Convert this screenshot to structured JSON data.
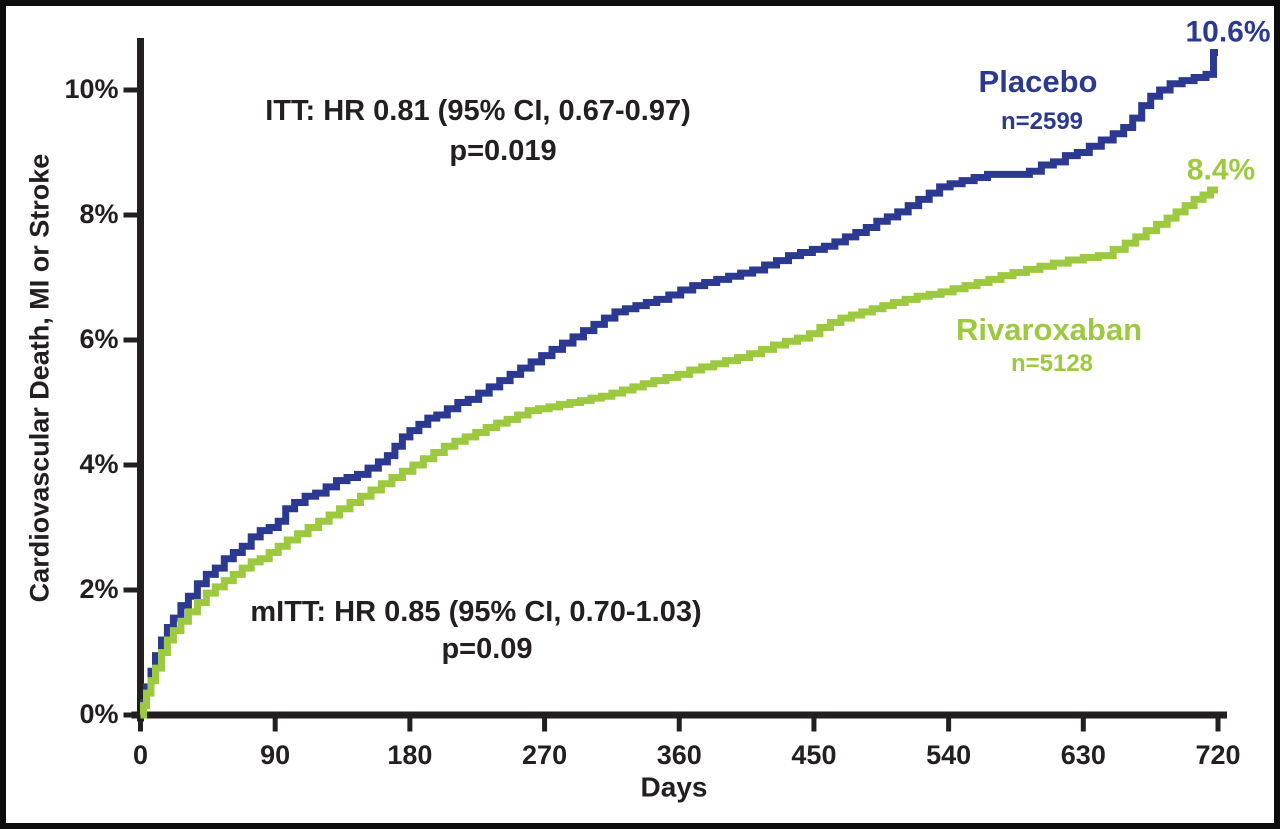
{
  "figure": {
    "y_axis_title": "Cardiovascular Death, MI or Stroke",
    "x_axis_title": "Days",
    "annotations": {
      "itt_line1": "ITT: HR 0.81 (95% CI, 0.67-0.97)",
      "itt_line2": "p=0.019",
      "mitt_line1": "mITT: HR 0.85 (95% CI, 0.70-1.03)",
      "mitt_line2": "p=0.09"
    },
    "series_labels": {
      "placebo_name": "Placebo",
      "placebo_n": "n=2599",
      "rivaroxaban_name": "Rivaroxaban",
      "rivaroxaban_n": "n=5128"
    },
    "endpoint_labels": {
      "placebo": "10.6%",
      "rivaroxaban": "8.4%"
    },
    "colors": {
      "placebo": "#2b3a90",
      "rivaroxaban": "#9cc93f",
      "axis": "#231f20"
    }
  },
  "chart_data": {
    "type": "line",
    "subtype": "kaplan-meier-step",
    "title": "",
    "xlabel": "Days",
    "ylabel": "Cardiovascular Death, MI or Stroke",
    "xlim": [
      0,
      720
    ],
    "ylim": [
      0,
      10.6
    ],
    "grid": false,
    "legend_position": "inline-labels",
    "x_ticks": [
      0,
      90,
      180,
      270,
      360,
      450,
      540,
      630,
      720
    ],
    "y_tick_values": [
      0,
      2,
      4,
      6,
      8,
      10
    ],
    "y_tick_labels": [
      "0%",
      "2%",
      "4%",
      "6%",
      "8%",
      "10%"
    ],
    "series": [
      {
        "name": "Placebo",
        "n_label": "n=2599",
        "color": "#2b3a90",
        "final_value_label": "10.6%",
        "points": [
          [
            0,
            0
          ],
          [
            2,
            0.2
          ],
          [
            4,
            0.45
          ],
          [
            7,
            0.7
          ],
          [
            10,
            0.95
          ],
          [
            14,
            1.2
          ],
          [
            18,
            1.4
          ],
          [
            22,
            1.55
          ],
          [
            27,
            1.75
          ],
          [
            32,
            1.9
          ],
          [
            38,
            2.1
          ],
          [
            44,
            2.25
          ],
          [
            50,
            2.35
          ],
          [
            56,
            2.5
          ],
          [
            62,
            2.6
          ],
          [
            68,
            2.7
          ],
          [
            74,
            2.85
          ],
          [
            80,
            2.95
          ],
          [
            86,
            3.0
          ],
          [
            92,
            3.1
          ],
          [
            97,
            3.3
          ],
          [
            103,
            3.4
          ],
          [
            110,
            3.5
          ],
          [
            117,
            3.55
          ],
          [
            124,
            3.65
          ],
          [
            131,
            3.75
          ],
          [
            138,
            3.8
          ],
          [
            145,
            3.85
          ],
          [
            152,
            3.95
          ],
          [
            159,
            4.05
          ],
          [
            165,
            4.15
          ],
          [
            170,
            4.3
          ],
          [
            175,
            4.45
          ],
          [
            180,
            4.55
          ],
          [
            186,
            4.65
          ],
          [
            192,
            4.75
          ],
          [
            198,
            4.8
          ],
          [
            205,
            4.9
          ],
          [
            212,
            5.0
          ],
          [
            219,
            5.05
          ],
          [
            226,
            5.15
          ],
          [
            233,
            5.25
          ],
          [
            240,
            5.35
          ],
          [
            247,
            5.45
          ],
          [
            254,
            5.55
          ],
          [
            261,
            5.65
          ],
          [
            268,
            5.75
          ],
          [
            275,
            5.85
          ],
          [
            282,
            5.95
          ],
          [
            289,
            6.05
          ],
          [
            296,
            6.15
          ],
          [
            303,
            6.25
          ],
          [
            310,
            6.35
          ],
          [
            317,
            6.45
          ],
          [
            324,
            6.5
          ],
          [
            331,
            6.55
          ],
          [
            338,
            6.6
          ],
          [
            345,
            6.65
          ],
          [
            353,
            6.72
          ],
          [
            361,
            6.8
          ],
          [
            369,
            6.87
          ],
          [
            377,
            6.92
          ],
          [
            385,
            6.97
          ],
          [
            393,
            7.02
          ],
          [
            401,
            7.07
          ],
          [
            409,
            7.12
          ],
          [
            417,
            7.2
          ],
          [
            425,
            7.27
          ],
          [
            433,
            7.35
          ],
          [
            441,
            7.4
          ],
          [
            449,
            7.45
          ],
          [
            457,
            7.5
          ],
          [
            464,
            7.57
          ],
          [
            471,
            7.65
          ],
          [
            478,
            7.72
          ],
          [
            485,
            7.8
          ],
          [
            492,
            7.9
          ],
          [
            499,
            7.97
          ],
          [
            506,
            8.05
          ],
          [
            513,
            8.15
          ],
          [
            520,
            8.25
          ],
          [
            527,
            8.35
          ],
          [
            534,
            8.45
          ],
          [
            541,
            8.5
          ],
          [
            549,
            8.55
          ],
          [
            557,
            8.6
          ],
          [
            566,
            8.65
          ],
          [
            580,
            8.65
          ],
          [
            594,
            8.7
          ],
          [
            602,
            8.8
          ],
          [
            610,
            8.85
          ],
          [
            618,
            8.95
          ],
          [
            626,
            9.0
          ],
          [
            634,
            9.1
          ],
          [
            642,
            9.2
          ],
          [
            650,
            9.3
          ],
          [
            657,
            9.4
          ],
          [
            663,
            9.55
          ],
          [
            669,
            9.75
          ],
          [
            675,
            9.9
          ],
          [
            681,
            10.0
          ],
          [
            688,
            10.1
          ],
          [
            696,
            10.15
          ],
          [
            704,
            10.2
          ],
          [
            712,
            10.25
          ],
          [
            717,
            10.6
          ],
          [
            720,
            10.6
          ]
        ]
      },
      {
        "name": "Rivaroxaban",
        "n_label": "n=5128",
        "color": "#9cc93f",
        "final_value_label": "8.4%",
        "points": [
          [
            0,
            0
          ],
          [
            2,
            0.15
          ],
          [
            4,
            0.35
          ],
          [
            7,
            0.55
          ],
          [
            10,
            0.75
          ],
          [
            14,
            1.0
          ],
          [
            18,
            1.2
          ],
          [
            22,
            1.35
          ],
          [
            27,
            1.5
          ],
          [
            32,
            1.65
          ],
          [
            38,
            1.8
          ],
          [
            44,
            1.95
          ],
          [
            50,
            2.05
          ],
          [
            56,
            2.15
          ],
          [
            62,
            2.25
          ],
          [
            68,
            2.35
          ],
          [
            74,
            2.45
          ],
          [
            80,
            2.5
          ],
          [
            86,
            2.6
          ],
          [
            92,
            2.7
          ],
          [
            98,
            2.8
          ],
          [
            105,
            2.9
          ],
          [
            112,
            3.0
          ],
          [
            119,
            3.1
          ],
          [
            126,
            3.2
          ],
          [
            133,
            3.3
          ],
          [
            140,
            3.4
          ],
          [
            147,
            3.5
          ],
          [
            154,
            3.6
          ],
          [
            161,
            3.7
          ],
          [
            168,
            3.8
          ],
          [
            175,
            3.9
          ],
          [
            182,
            4.0
          ],
          [
            189,
            4.1
          ],
          [
            196,
            4.2
          ],
          [
            203,
            4.3
          ],
          [
            210,
            4.38
          ],
          [
            217,
            4.45
          ],
          [
            224,
            4.52
          ],
          [
            231,
            4.6
          ],
          [
            238,
            4.67
          ],
          [
            245,
            4.73
          ],
          [
            252,
            4.8
          ],
          [
            259,
            4.87
          ],
          [
            266,
            4.9
          ],
          [
            273,
            4.93
          ],
          [
            280,
            4.97
          ],
          [
            287,
            5.0
          ],
          [
            294,
            5.03
          ],
          [
            301,
            5.07
          ],
          [
            308,
            5.1
          ],
          [
            315,
            5.15
          ],
          [
            322,
            5.2
          ],
          [
            329,
            5.25
          ],
          [
            336,
            5.3
          ],
          [
            343,
            5.35
          ],
          [
            351,
            5.4
          ],
          [
            359,
            5.45
          ],
          [
            367,
            5.52
          ],
          [
            375,
            5.57
          ],
          [
            383,
            5.62
          ],
          [
            391,
            5.67
          ],
          [
            399,
            5.72
          ],
          [
            407,
            5.78
          ],
          [
            415,
            5.85
          ],
          [
            423,
            5.92
          ],
          [
            431,
            5.98
          ],
          [
            439,
            6.03
          ],
          [
            447,
            6.1
          ],
          [
            454,
            6.2
          ],
          [
            461,
            6.28
          ],
          [
            468,
            6.35
          ],
          [
            475,
            6.4
          ],
          [
            482,
            6.45
          ],
          [
            489,
            6.5
          ],
          [
            496,
            6.55
          ],
          [
            503,
            6.6
          ],
          [
            511,
            6.65
          ],
          [
            519,
            6.7
          ],
          [
            527,
            6.73
          ],
          [
            535,
            6.77
          ],
          [
            543,
            6.82
          ],
          [
            551,
            6.87
          ],
          [
            559,
            6.92
          ],
          [
            567,
            6.97
          ],
          [
            575,
            7.03
          ],
          [
            583,
            7.08
          ],
          [
            592,
            7.13
          ],
          [
            601,
            7.18
          ],
          [
            610,
            7.23
          ],
          [
            620,
            7.28
          ],
          [
            630,
            7.32
          ],
          [
            640,
            7.35
          ],
          [
            650,
            7.45
          ],
          [
            658,
            7.55
          ],
          [
            665,
            7.65
          ],
          [
            672,
            7.75
          ],
          [
            679,
            7.85
          ],
          [
            686,
            7.95
          ],
          [
            692,
            8.05
          ],
          [
            698,
            8.15
          ],
          [
            704,
            8.25
          ],
          [
            710,
            8.32
          ],
          [
            715,
            8.4
          ],
          [
            720,
            8.4
          ]
        ]
      }
    ]
  }
}
